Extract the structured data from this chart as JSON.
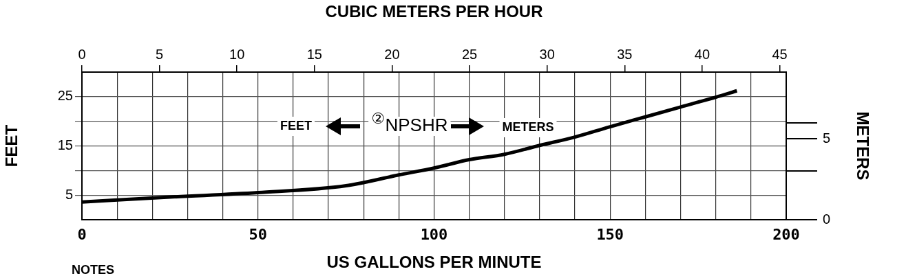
{
  "chart_data": {
    "type": "line",
    "x2label": "CUBIC METERS PER HOUR",
    "xlabel": "US GALLONS PER MINUTE",
    "ylabel": "FEET",
    "y2label": "METERS",
    "annotations": [
      "FEET",
      "②",
      "NPSHR",
      "METERS",
      "NOTES"
    ],
    "x": [
      0,
      25,
      50,
      75,
      90,
      100,
      110,
      120,
      130,
      140,
      150,
      160,
      170,
      180,
      186
    ],
    "series": [
      {
        "color": "#000000",
        "values": [
          3.6,
          4.6,
          5.5,
          6.9,
          9.1,
          10.5,
          12.2,
          13.3,
          15.1,
          16.8,
          18.9,
          20.9,
          22.9,
          24.9,
          26.2
        ]
      }
    ],
    "xlim": [
      0,
      200
    ],
    "xticks": [
      0,
      {
        "value": 10,
        "label": null
      },
      {
        "value": 20,
        "label": null
      },
      {
        "value": 30,
        "label": null
      },
      {
        "value": 40,
        "label": null
      },
      50,
      {
        "value": 60,
        "label": null
      },
      {
        "value": 70,
        "label": null
      },
      {
        "value": 80,
        "label": null
      },
      {
        "value": 90,
        "label": null
      },
      100,
      {
        "value": 110,
        "label": null
      },
      {
        "value": 120,
        "label": null
      },
      {
        "value": 130,
        "label": null
      },
      {
        "value": 140,
        "label": null
      },
      150,
      {
        "value": 160,
        "label": null
      },
      {
        "value": 170,
        "label": null
      },
      {
        "value": 180,
        "label": null
      },
      {
        "value": 190,
        "label": null
      },
      200
    ],
    "x2lim": [
      0,
      45.42
    ],
    "x2ticks": [
      0,
      5,
      10,
      15,
      20,
      25,
      30,
      35,
      40,
      45
    ],
    "ylim": [
      0,
      30
    ],
    "yticks": [
      5,
      {
        "value": 10,
        "label": null
      },
      15,
      {
        "value": 20,
        "label": null
      },
      25
    ],
    "y2lim": [
      0,
      9.14
    ],
    "y2ticks": [
      0,
      {
        "value": 3,
        "label": null
      },
      5,
      {
        "value": 6,
        "label": null
      }
    ],
    "grid": true,
    "legend": false,
    "marker": "none",
    "line_style": "solid"
  }
}
